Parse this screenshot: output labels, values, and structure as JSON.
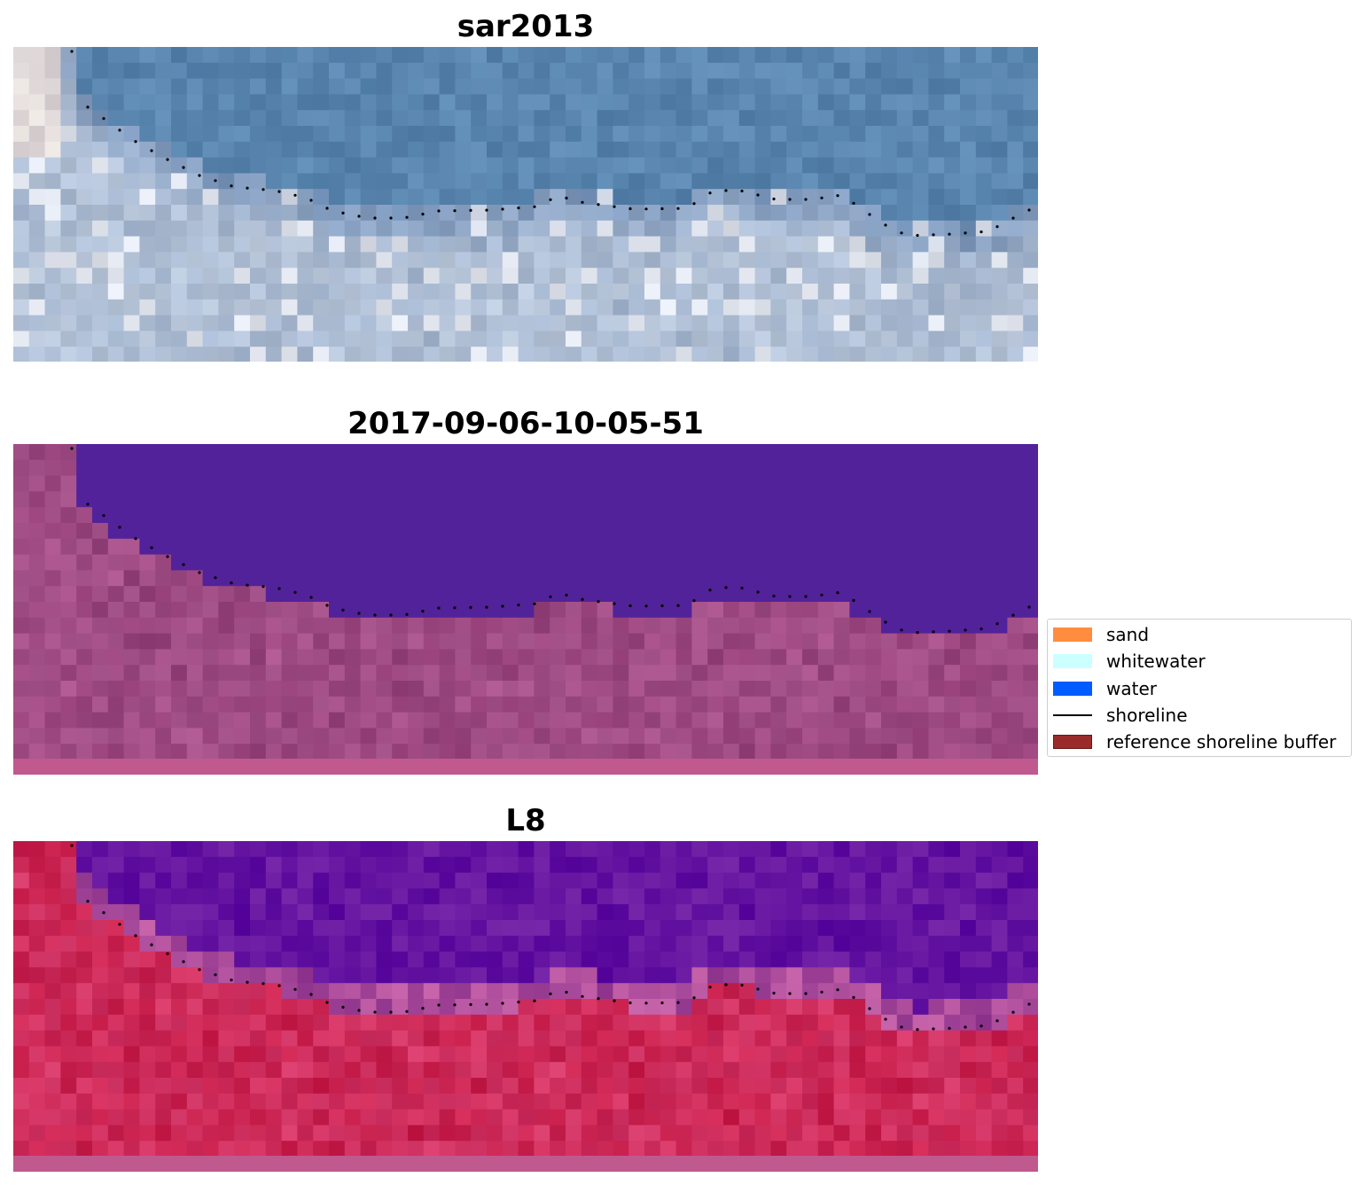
{
  "panels": [
    {
      "title": "sar2013",
      "style": "rgb"
    },
    {
      "title": "2017-09-06-10-05-51",
      "style": "classified"
    },
    {
      "title": "L8",
      "style": "index"
    }
  ],
  "legend": {
    "items": [
      {
        "label": "sand",
        "color": "#ff8c3f",
        "kind": "patch"
      },
      {
        "label": "whitewater",
        "color": "#ccffff",
        "kind": "patch"
      },
      {
        "label": "water",
        "color": "#005cff",
        "kind": "patch"
      },
      {
        "label": "shoreline",
        "color": "#000000",
        "kind": "line"
      },
      {
        "label": "reference shoreline buffer",
        "color": "#9b2b2b",
        "kind": "patch"
      }
    ]
  },
  "colors": {
    "sea_blue": "#5481ad",
    "class_water": "#52229a",
    "class_land": "#a04a8a",
    "index_water": "#5f0e9e",
    "index_land": "#c8204f",
    "buffer_strip": "#c0598e"
  }
}
